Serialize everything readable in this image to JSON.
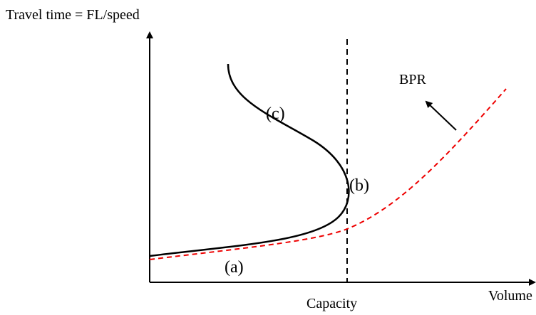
{
  "y_axis_label": "Travel time = FL/speed",
  "x_axis_label": "Volume",
  "capacity_label": "Capacity",
  "bpr_label": "BPR",
  "point_labels": [
    "(a)",
    "(b)",
    "(c)"
  ]
}
